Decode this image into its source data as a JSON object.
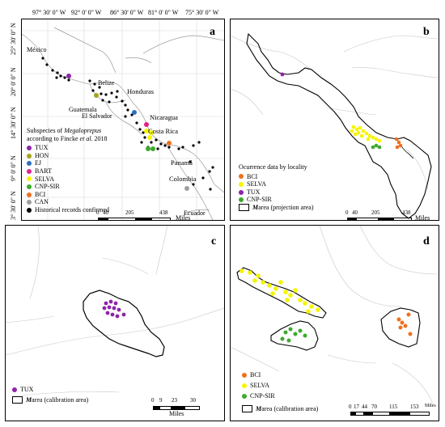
{
  "panels": {
    "a": {
      "label": "a",
      "top_coords": [
        "97° 30' 0\" W",
        "92° 0' 0\" W",
        "86° 30' 0\" W",
        "81° 0' 0\" W",
        "75° 30' 0\" W"
      ],
      "left_coords": [
        "25° 30' 0\" N",
        "20° 0' 0\" N",
        "14° 30' 0\" N",
        "9° 0' 0\" N",
        "3° 30' 0\" N"
      ],
      "places": {
        "mexico": "México",
        "belize": "Belize",
        "honduras": "Honduras",
        "guatemala": "Guatemala",
        "el_salvador": "El Salvador",
        "nicaragua": "Nicaragua",
        "costa_rica": "Costa Rica",
        "panama": "Panamá",
        "colombia": "Colombia",
        "ecuador": "Ecuador"
      },
      "legend_title_1": "Subspecies of ",
      "legend_title_italic": "Megaloprepus",
      "legend_title_2": "according to Fincke ",
      "legend_title_2_italic": "et al.",
      "legend_title_2_end": " 2018",
      "legend": [
        {
          "label": "TUX",
          "color": "#8e24aa"
        },
        {
          "label": "HON",
          "color": "#a5a51a"
        },
        {
          "label": "EJ",
          "color": "#2e6fc0"
        },
        {
          "label": "BART",
          "color": "#e0218a"
        },
        {
          "label": "SELVA",
          "color": "#f5f500"
        },
        {
          "label": "CNP-SIR",
          "color": "#3caa2c"
        },
        {
          "label": "BCI",
          "color": "#f0701e"
        },
        {
          "label": "CAN",
          "color": "#9e9e9e"
        },
        {
          "label": "Historical records confirmed",
          "color": "#000000"
        }
      ],
      "scale": {
        "ticks": [
          "0",
          "40",
          "205",
          "438"
        ],
        "unit": "Miles"
      }
    },
    "b": {
      "label": "b",
      "legend_title": "Ocurrence data by locality",
      "legend": [
        {
          "label": "BCI",
          "color": "#f0701e"
        },
        {
          "label": "SELVA",
          "color": "#f5f500"
        },
        {
          "label": "TUX",
          "color": "#8e24aa"
        },
        {
          "label": "CNP-SIR",
          "color": "#3caa2c"
        }
      ],
      "area_label_italic": "M",
      "area_label": " area (projection area)",
      "scale": {
        "ticks": [
          "0",
          "40",
          "205",
          "438"
        ],
        "unit": "Miles"
      }
    },
    "c": {
      "label": "c",
      "legend": [
        {
          "label": "TUX",
          "color": "#8e24aa"
        }
      ],
      "area_label_italic": "M",
      "area_label": " area (calibration area)",
      "scale": {
        "ticks": [
          "0",
          "9",
          "23",
          "30"
        ],
        "unit": "Miles"
      }
    },
    "d": {
      "label": "d",
      "legend": [
        {
          "label": "BCI",
          "color": "#f0701e"
        },
        {
          "label": "SELVA",
          "color": "#f5f500"
        },
        {
          "label": "CNP-SIR",
          "color": "#3caa2c"
        }
      ],
      "area_label_italic": "M",
      "area_label": " area (calibration area)",
      "scale": {
        "ticks": [
          "0",
          "17",
          "44",
          "70",
          "115",
          "153"
        ],
        "unit": "Miles"
      }
    }
  }
}
